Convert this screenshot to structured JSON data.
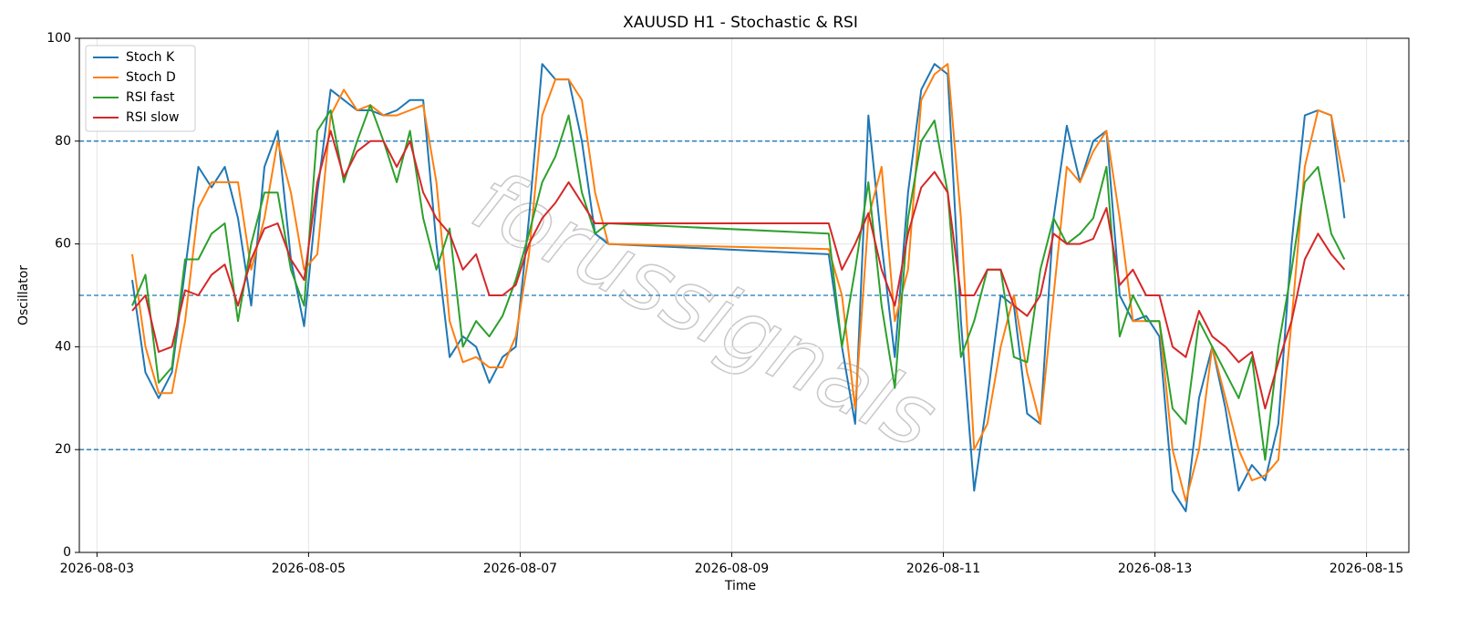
{
  "chart_data": {
    "type": "line",
    "title": "XAUUSD H1 - Stochastic & RSI",
    "xlabel": "Time",
    "ylabel": "Oscillator",
    "watermark": "forussignals",
    "x": [
      "2026-08-03 08:00",
      "2026-08-03 11:00",
      "2026-08-03 14:00",
      "2026-08-03 17:00",
      "2026-08-03 20:00",
      "2026-08-03 23:00",
      "2026-08-04 02:00",
      "2026-08-04 05:00",
      "2026-08-04 08:00",
      "2026-08-04 11:00",
      "2026-08-04 14:00",
      "2026-08-04 17:00",
      "2026-08-04 20:00",
      "2026-08-04 23:00",
      "2026-08-05 02:00",
      "2026-08-05 05:00",
      "2026-08-05 08:00",
      "2026-08-05 11:00",
      "2026-08-05 14:00",
      "2026-08-05 17:00",
      "2026-08-05 20:00",
      "2026-08-05 23:00",
      "2026-08-06 02:00",
      "2026-08-06 05:00",
      "2026-08-06 08:00",
      "2026-08-06 11:00",
      "2026-08-06 14:00",
      "2026-08-06 17:00",
      "2026-08-06 20:00",
      "2026-08-06 23:00",
      "2026-08-07 02:00",
      "2026-08-07 05:00",
      "2026-08-07 08:00",
      "2026-08-07 11:00",
      "2026-08-07 14:00",
      "2026-08-07 17:00",
      "2026-08-07 20:00",
      "2026-08-09 22:00",
      "2026-08-10 01:00",
      "2026-08-10 04:00",
      "2026-08-10 07:00",
      "2026-08-10 10:00",
      "2026-08-10 13:00",
      "2026-08-10 16:00",
      "2026-08-10 19:00",
      "2026-08-10 22:00",
      "2026-08-11 01:00",
      "2026-08-11 04:00",
      "2026-08-11 07:00",
      "2026-08-11 10:00",
      "2026-08-11 13:00",
      "2026-08-11 16:00",
      "2026-08-11 19:00",
      "2026-08-11 22:00",
      "2026-08-12 01:00",
      "2026-08-12 04:00",
      "2026-08-12 07:00",
      "2026-08-12 10:00",
      "2026-08-12 13:00",
      "2026-08-12 16:00",
      "2026-08-12 19:00",
      "2026-08-12 22:00",
      "2026-08-13 01:00",
      "2026-08-13 04:00",
      "2026-08-13 07:00",
      "2026-08-13 10:00",
      "2026-08-13 13:00",
      "2026-08-13 16:00",
      "2026-08-13 19:00",
      "2026-08-13 22:00",
      "2026-08-14 01:00",
      "2026-08-14 04:00",
      "2026-08-14 07:00",
      "2026-08-14 10:00",
      "2026-08-14 13:00",
      "2026-08-14 16:00",
      "2026-08-14 19:00"
    ],
    "series": [
      {
        "name": "Stoch K",
        "color": "#1f77b4",
        "values": [
          53,
          35,
          30,
          35,
          55,
          75,
          71,
          75,
          65,
          48,
          75,
          82,
          57,
          44,
          70,
          90,
          88,
          86,
          86,
          85,
          86,
          88,
          88,
          60,
          38,
          42,
          40,
          33,
          38,
          40,
          65,
          95,
          92,
          92,
          80,
          62,
          60,
          58,
          40,
          25,
          85,
          60,
          38,
          70,
          90,
          95,
          93,
          45,
          12,
          30,
          50,
          48,
          27,
          25,
          65,
          83,
          72,
          80,
          82,
          50,
          45,
          46,
          42,
          12,
          8,
          30,
          40,
          28,
          12,
          17,
          14,
          25,
          60,
          85,
          86,
          85,
          65
        ]
      },
      {
        "name": "Stoch D",
        "color": "#ff7f0e",
        "values": [
          58,
          40,
          31,
          31,
          45,
          67,
          72,
          72,
          72,
          55,
          65,
          80,
          70,
          55,
          58,
          85,
          90,
          86,
          87,
          85,
          85,
          86,
          87,
          72,
          45,
          37,
          38,
          36,
          36,
          42,
          58,
          85,
          92,
          92,
          88,
          70,
          60,
          59,
          50,
          28,
          65,
          75,
          45,
          55,
          88,
          93,
          95,
          65,
          20,
          25,
          40,
          50,
          35,
          25,
          50,
          75,
          72,
          78,
          82,
          65,
          45,
          45,
          45,
          20,
          10,
          20,
          40,
          30,
          20,
          14,
          15,
          18,
          45,
          75,
          86,
          85,
          72
        ]
      },
      {
        "name": "RSI fast",
        "color": "#2ca02c",
        "values": [
          48,
          54,
          33,
          36,
          57,
          57,
          62,
          64,
          45,
          60,
          70,
          70,
          55,
          48,
          82,
          86,
          72,
          80,
          87,
          80,
          72,
          82,
          65,
          55,
          63,
          40,
          45,
          42,
          46,
          53,
          62,
          72,
          77,
          85,
          70,
          62,
          64,
          62,
          40,
          55,
          72,
          48,
          32,
          65,
          80,
          84,
          70,
          38,
          45,
          55,
          55,
          38,
          37,
          55,
          65,
          60,
          62,
          65,
          75,
          42,
          50,
          45,
          45,
          28,
          25,
          45,
          40,
          35,
          30,
          38,
          18,
          40,
          55,
          72,
          75,
          62,
          57
        ]
      },
      {
        "name": "RSI slow",
        "color": "#d62728",
        "values": [
          47,
          50,
          39,
          40,
          51,
          50,
          54,
          56,
          48,
          57,
          63,
          64,
          57,
          53,
          72,
          82,
          73,
          78,
          80,
          80,
          75,
          80,
          70,
          65,
          62,
          55,
          58,
          50,
          50,
          52,
          60,
          65,
          68,
          72,
          68,
          64,
          64,
          64,
          55,
          60,
          66,
          55,
          48,
          62,
          71,
          74,
          70,
          50,
          50,
          55,
          55,
          48,
          46,
          50,
          62,
          60,
          60,
          61,
          67,
          52,
          55,
          50,
          50,
          40,
          38,
          47,
          42,
          40,
          37,
          39,
          28,
          37,
          45,
          57,
          62,
          58,
          55
        ]
      }
    ],
    "xlim": [
      "2026-08-02 20:00",
      "2026-08-15 09:36"
    ],
    "xticks": [
      "2026-08-03",
      "2026-08-05",
      "2026-08-07",
      "2026-08-09",
      "2026-08-11",
      "2026-08-13",
      "2026-08-15"
    ],
    "ylim": [
      0,
      100
    ],
    "yticks": [
      0,
      20,
      40,
      60,
      80,
      100
    ],
    "hlines": [
      20,
      50,
      80
    ],
    "hline_color": "#1f77b4",
    "grid": true,
    "legend": "upper left"
  }
}
